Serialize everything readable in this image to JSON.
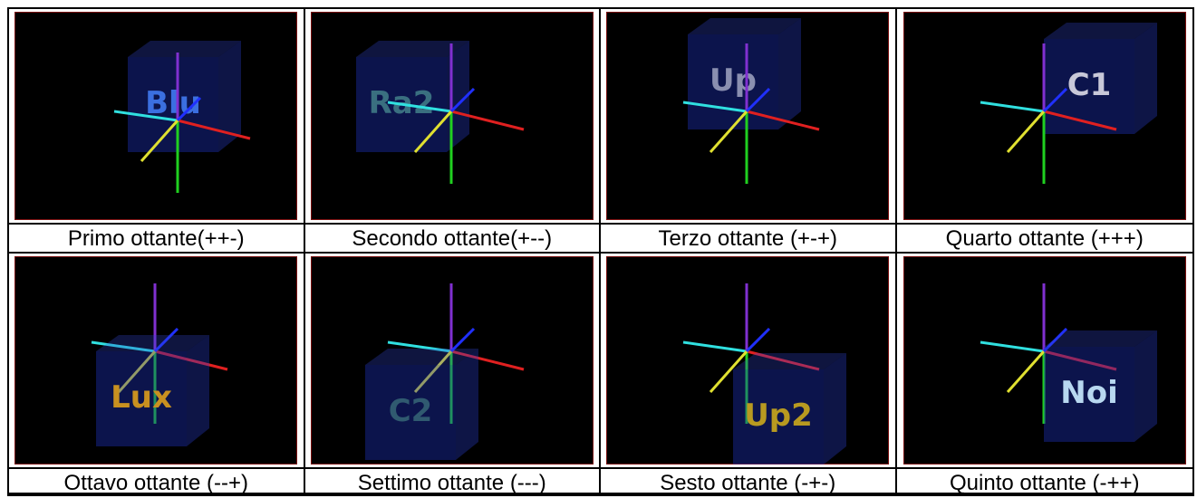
{
  "table": {
    "rows": [
      [
        {
          "caption": "Primo ottante(++-)",
          "cube_label": "Blu"
        },
        {
          "caption": "Secondo ottante(+--)",
          "cube_label": "Ra2"
        },
        {
          "caption": "Terzo ottante (+-+)",
          "cube_label": "Up"
        },
        {
          "caption": "Quarto ottante (+++)",
          "cube_label": "C1"
        }
      ],
      [
        {
          "caption": "Ottavo ottante (--+)",
          "cube_label": "Lux"
        },
        {
          "caption": "Settimo ottante (---)",
          "cube_label": "C2"
        },
        {
          "caption": "Sesto ottante (-+-)",
          "cube_label": "Up2"
        },
        {
          "caption": "Quinto ottante (-++)",
          "cube_label": "Noi"
        }
      ]
    ]
  }
}
